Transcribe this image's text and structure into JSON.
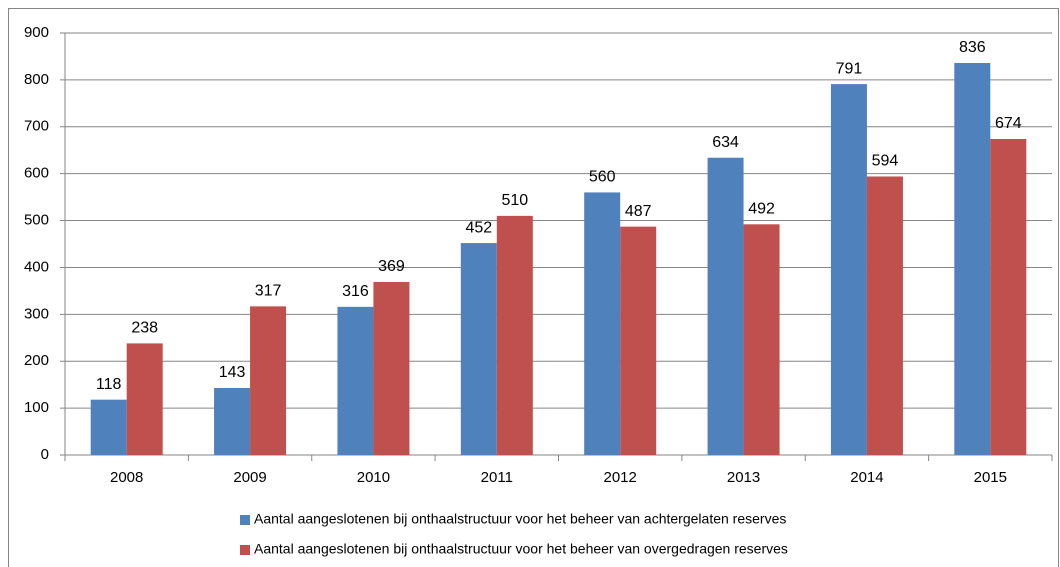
{
  "chart_data": {
    "type": "bar",
    "categories": [
      "2008",
      "2009",
      "2010",
      "2011",
      "2012",
      "2013",
      "2014",
      "2015"
    ],
    "series": [
      {
        "name": "Aantal aangeslotenen bij onthaalstructuur voor het beheer van achtergelaten reserves",
        "color": "#4f81bd",
        "values": [
          118,
          143,
          316,
          452,
          560,
          634,
          791,
          836
        ]
      },
      {
        "name": "Aantal aangeslotenen bij onthaalstructuur voor het beheer van overgedragen reserves",
        "color": "#c0504d",
        "values": [
          238,
          317,
          369,
          510,
          487,
          492,
          594,
          674
        ]
      }
    ],
    "ylim": [
      0,
      900
    ],
    "yticks": [
      0,
      100,
      200,
      300,
      400,
      500,
      600,
      700,
      800,
      900
    ],
    "grid": true,
    "legend": "bottom"
  }
}
